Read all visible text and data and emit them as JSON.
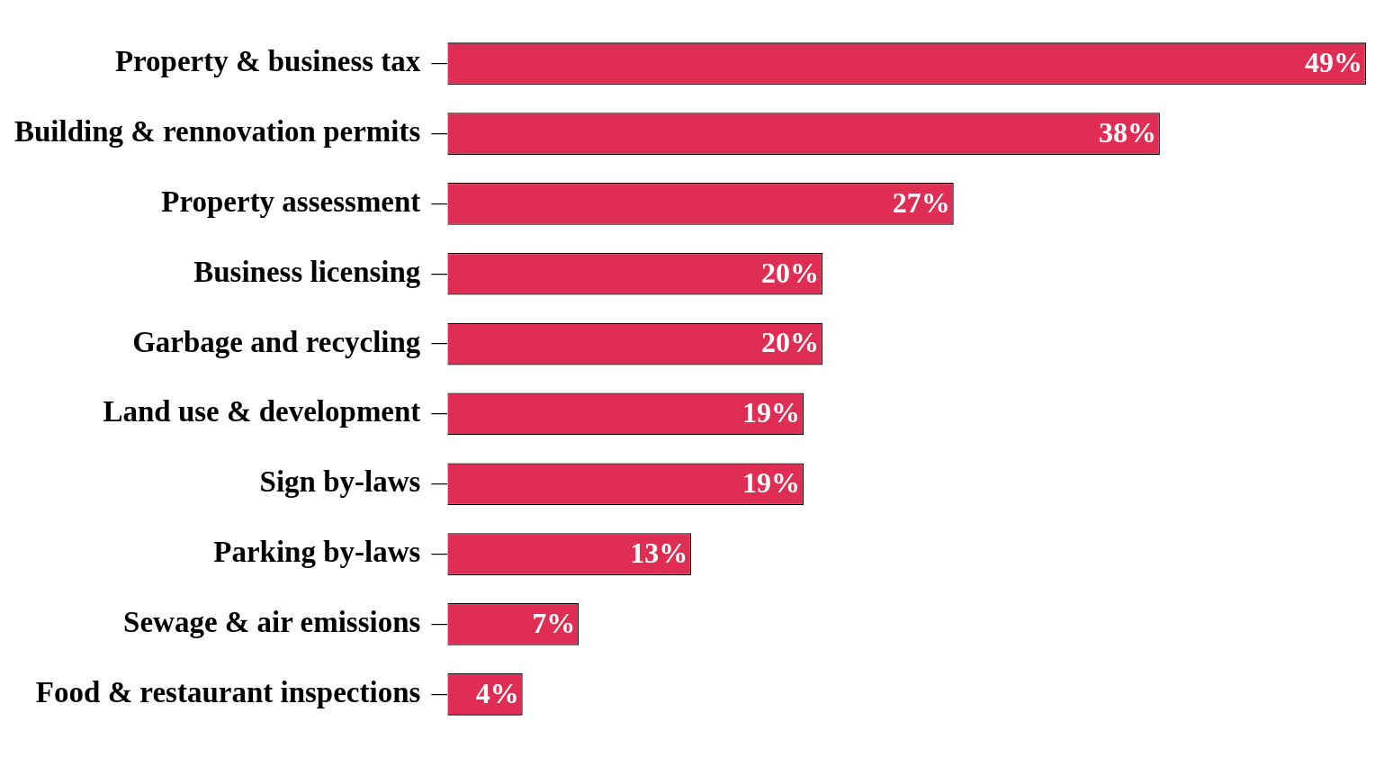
{
  "chart_data": {
    "type": "bar",
    "orientation": "horizontal",
    "categories": [
      "Property & business tax",
      "Building & rennovation permits",
      "Property assessment",
      "Business licensing",
      "Garbage and recycling",
      "Land use & development",
      "Sign by-laws",
      "Parking by-laws",
      "Sewage & air emissions",
      "Food & restaurant inspections"
    ],
    "values": [
      49,
      38,
      27,
      20,
      20,
      19,
      19,
      13,
      7,
      4
    ],
    "value_labels": [
      "49%",
      "38%",
      "27%",
      "20%",
      "20%",
      "19%",
      "19%",
      "13%",
      "7%",
      "4%"
    ],
    "color": "#e02d54",
    "xlim": [
      0,
      49
    ],
    "tick_labels": "y",
    "legend": false
  }
}
